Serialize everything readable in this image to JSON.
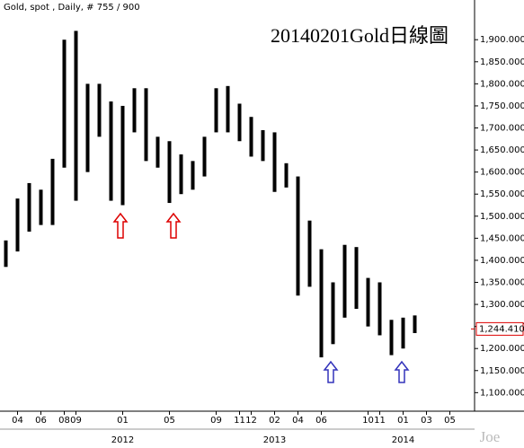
{
  "header": "Gold, spot , Daily, # 755 / 900",
  "chart_data": {
    "type": "range",
    "title": "20140201Gold日線圖",
    "categories": [
      null,
      "04",
      null,
      "06",
      null,
      "08",
      "09",
      null,
      null,
      null,
      "01",
      null,
      null,
      null,
      "05",
      null,
      null,
      null,
      "09",
      null,
      "11",
      "12",
      null,
      "02",
      null,
      "04",
      null,
      "06",
      null,
      null,
      null,
      "10",
      "11",
      null,
      "01",
      null,
      "03",
      null,
      "05",
      null
    ],
    "year_categories": [
      null,
      null,
      null,
      null,
      null,
      null,
      null,
      null,
      null,
      null,
      "2012",
      null,
      null,
      null,
      null,
      null,
      null,
      null,
      null,
      null,
      null,
      null,
      null,
      "2013",
      null,
      null,
      null,
      null,
      null,
      null,
      null,
      null,
      null,
      null,
      "2014",
      null,
      null,
      null,
      null,
      null
    ],
    "high": [
      1445,
      1540,
      1575,
      1560,
      1630,
      1900,
      1920,
      1800,
      1800,
      1760,
      1750,
      1790,
      1790,
      1680,
      1670,
      1640,
      1625,
      1680,
      1790,
      1795,
      1755,
      1725,
      1695,
      1690,
      1620,
      1590,
      1490,
      1425,
      1350,
      1435,
      1430,
      1360,
      1350,
      1265,
      1270,
      1275,
      null,
      null,
      null,
      null
    ],
    "low": [
      1385,
      1420,
      1465,
      1480,
      1480,
      1610,
      1535,
      1600,
      1680,
      1535,
      1525,
      1690,
      1625,
      1610,
      1530,
      1550,
      1560,
      1590,
      1690,
      1690,
      1670,
      1635,
      1625,
      1555,
      1565,
      1320,
      1340,
      1180,
      1210,
      1270,
      1290,
      1250,
      1230,
      1185,
      1200,
      1235,
      null,
      null,
      null,
      null
    ],
    "color": "#000000",
    "ylim": [
      1060,
      1990
    ],
    "yticks": [
      {
        "value": 1100,
        "label": "1,100.000"
      },
      {
        "value": 1150,
        "label": "1,150.000"
      },
      {
        "value": 1200,
        "label": "1,200.000"
      },
      {
        "value": 1250,
        "label": "1,250.000"
      },
      {
        "value": 1300,
        "label": "1,300.000"
      },
      {
        "value": 1350,
        "label": "1,350.000"
      },
      {
        "value": 1400,
        "label": "1,400.000"
      },
      {
        "value": 1450,
        "label": "1,450.000"
      },
      {
        "value": 1500,
        "label": "1,500.000"
      },
      {
        "value": 1550,
        "label": "1,550.000"
      },
      {
        "value": 1600,
        "label": "1,600.000"
      },
      {
        "value": 1650,
        "label": "1,650.000"
      },
      {
        "value": 1700,
        "label": "1,700.000"
      },
      {
        "value": 1750,
        "label": "1,750.000"
      },
      {
        "value": 1800,
        "label": "1,800.000"
      },
      {
        "value": 1850,
        "label": "1,850.000"
      },
      {
        "value": 1900,
        "label": "1,900.000"
      }
    ],
    "last_price": {
      "value": 1244.41,
      "label": "1,244.410"
    },
    "watermark": "Joe"
  }
}
